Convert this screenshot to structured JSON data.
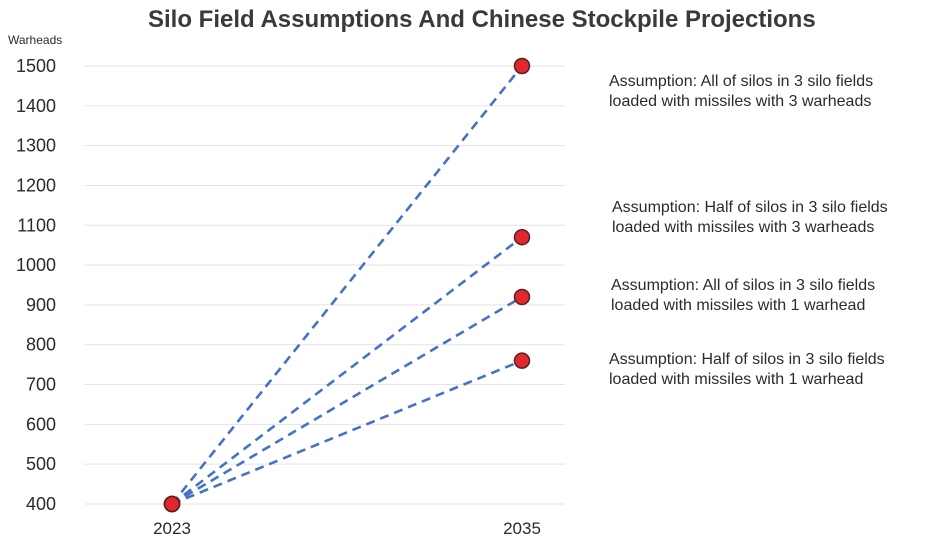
{
  "chart_data": {
    "type": "line",
    "title": "Silo Field Assumptions And Chinese Stockpile Projections",
    "ylabel": "Warheads",
    "xlabel": "",
    "categories": [
      "2023",
      "2035"
    ],
    "ylim": [
      400,
      1500
    ],
    "yticks": [
      400,
      500,
      600,
      700,
      800,
      900,
      1000,
      1100,
      1200,
      1300,
      1400,
      1500
    ],
    "grid": true,
    "line_style": "dashed",
    "line_color": "#4472c4",
    "marker_color": "#e0282e",
    "series": [
      {
        "values": [
          400,
          1500
        ]
      },
      {
        "values": [
          400,
          1070
        ]
      },
      {
        "values": [
          400,
          920
        ]
      },
      {
        "values": [
          400,
          760
        ]
      }
    ],
    "annotations": [
      {
        "line1": "Assumption: All of silos in 3 silo fields",
        "line2": "loaded with missiles with 3 warheads"
      },
      {
        "line1": "Assumption: Half of silos in 3 silo fields",
        "line2": "loaded with missiles with 3 warheads"
      },
      {
        "line1": "Assumption: All of silos in 3 silo fields",
        "line2": "loaded with missiles with 1 warhead"
      },
      {
        "line1": "Assumption: Half of silos in 3 silo fields",
        "line2": "loaded with missiles with 1 warhead"
      }
    ]
  }
}
